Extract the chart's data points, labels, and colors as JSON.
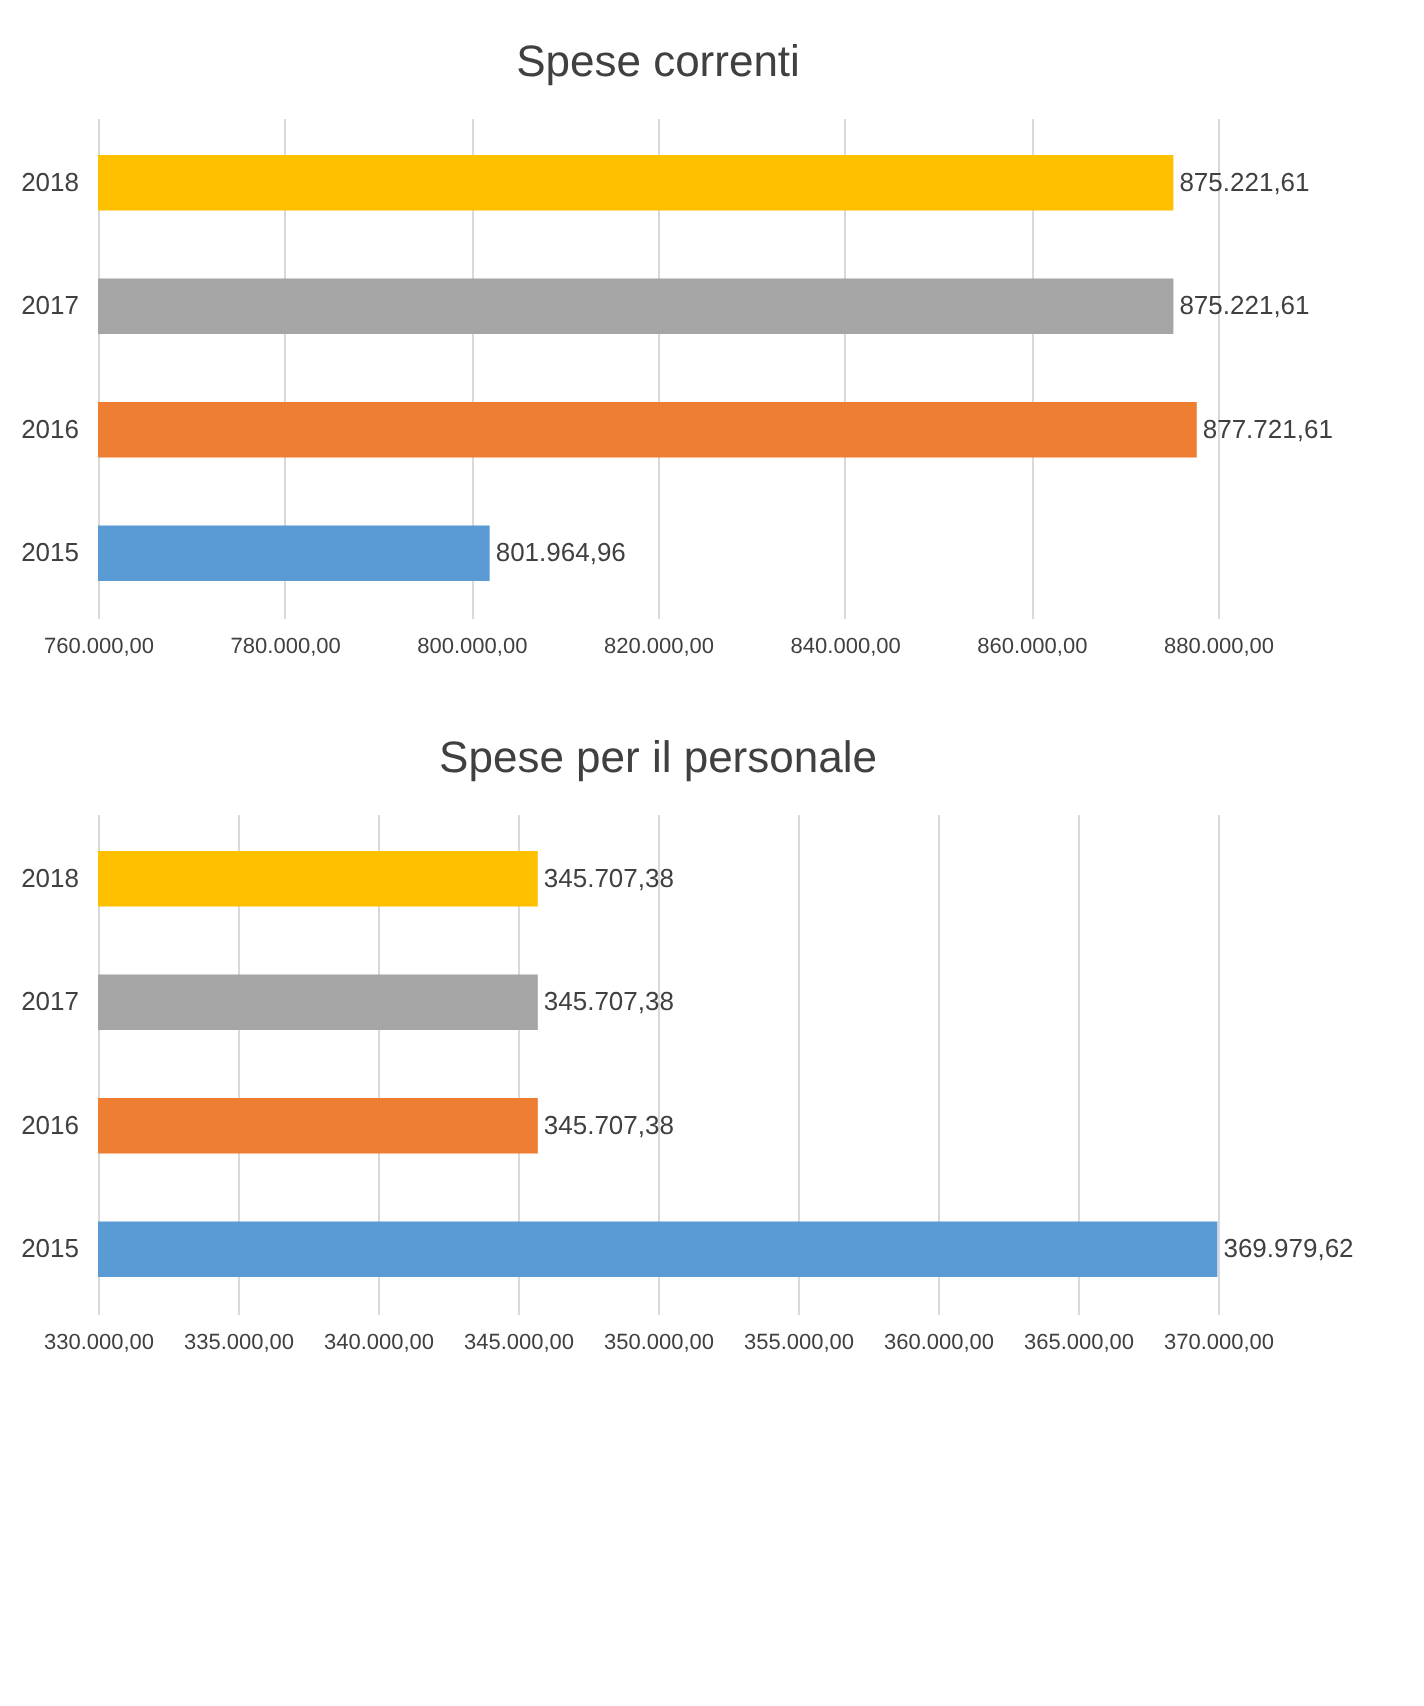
{
  "chart_data": [
    {
      "type": "bar",
      "orientation": "horizontal",
      "title": "Spese correnti",
      "categories": [
        "2018",
        "2017",
        "2016",
        "2015"
      ],
      "values": [
        875221.61,
        875221.61,
        877721.61,
        801964.96
      ],
      "colors": [
        "#ffc000",
        "#a5a5a5",
        "#ed7d31",
        "#5b9bd5"
      ],
      "value_labels": [
        "875.221,61",
        "875.221,61",
        "877.721,61",
        "801.964,96"
      ],
      "xlim": [
        760000,
        880000
      ],
      "xticks": [
        {
          "value": 760000,
          "label": "760.000,00"
        },
        {
          "value": 780000,
          "label": "780.000,00"
        },
        {
          "value": 800000,
          "label": "800.000,00"
        },
        {
          "value": 820000,
          "label": "820.000,00"
        },
        {
          "value": 840000,
          "label": "840.000,00"
        },
        {
          "value": 860000,
          "label": "860.000,00"
        },
        {
          "value": 880000,
          "label": "880.000,00"
        }
      ],
      "grid": "x",
      "legend": false
    },
    {
      "type": "bar",
      "orientation": "horizontal",
      "title": "Spese per il personale",
      "categories": [
        "2018",
        "2017",
        "2016",
        "2015"
      ],
      "values": [
        345707.38,
        345707.38,
        345707.38,
        369979.62
      ],
      "colors": [
        "#ffc000",
        "#a5a5a5",
        "#ed7d31",
        "#5b9bd5"
      ],
      "value_labels": [
        "345.707,38",
        "345.707,38",
        "345.707,38",
        "369.979,62"
      ],
      "xlim": [
        330000,
        370000
      ],
      "xticks": [
        {
          "value": 330000,
          "label": "330.000,00"
        },
        {
          "value": 335000,
          "label": "335.000,00"
        },
        {
          "value": 340000,
          "label": "340.000,00"
        },
        {
          "value": 345000,
          "label": "345.000,00"
        },
        {
          "value": 350000,
          "label": "350.000,00"
        },
        {
          "value": 355000,
          "label": "355.000,00"
        },
        {
          "value": 360000,
          "label": "360.000,00"
        },
        {
          "value": 365000,
          "label": "365.000,00"
        },
        {
          "value": 370000,
          "label": "370.000,00"
        }
      ],
      "grid": "x",
      "legend": false
    }
  ]
}
